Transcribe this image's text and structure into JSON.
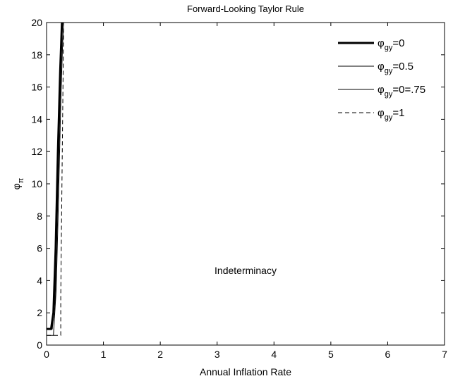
{
  "chart_data": {
    "type": "line",
    "title": "Forward-Looking Taylor Rule",
    "xlabel": "Annual Inflation Rate",
    "ylabel": "φπ",
    "ylabel_parts": {
      "base": "φ",
      "sub": "π"
    },
    "xlim": [
      0,
      7
    ],
    "ylim": [
      0,
      20
    ],
    "xticks": [
      0,
      1,
      2,
      3,
      4,
      5,
      6,
      7
    ],
    "yticks": [
      0,
      2,
      4,
      6,
      8,
      10,
      12,
      14,
      16,
      18,
      20
    ],
    "grid": false,
    "legend_position": "top-right",
    "annotations": [
      {
        "text": "Indeterminacy",
        "x": 3.5,
        "y": 4.4
      }
    ],
    "series": [
      {
        "name": "φgy=0",
        "label_parts": {
          "base": "φ",
          "sub": "gy",
          "suffix": "=0"
        },
        "style": "solid-thick",
        "x": [
          0.0,
          0.08,
          0.12,
          0.16,
          0.2,
          0.24,
          0.27
        ],
        "y": [
          1.0,
          1.0,
          2.0,
          6.0,
          12.0,
          17.0,
          20.0
        ]
      },
      {
        "name": "φgy=0.5",
        "label_parts": {
          "base": "φ",
          "sub": "gy",
          "suffix": "=0.5"
        },
        "style": "solid-thin",
        "x": [
          0.0,
          0.1,
          0.15,
          0.19,
          0.23,
          0.26,
          0.28
        ],
        "y": [
          1.0,
          1.0,
          2.8,
          8.0,
          14.0,
          18.0,
          20.0
        ]
      },
      {
        "name": "φgy=0=.75",
        "label_parts": {
          "base": "φ",
          "sub": "gy",
          "suffix": "=0=.75"
        },
        "style": "solid-thin",
        "x": [
          0.0,
          0.12,
          0.17,
          0.21,
          0.25,
          0.28,
          0.3
        ],
        "y": [
          0.6,
          0.6,
          3.5,
          9.0,
          15.0,
          18.5,
          20.0
        ]
      },
      {
        "name": "φgy=1",
        "label_parts": {
          "base": "φ",
          "sub": "gy",
          "suffix": "=1"
        },
        "style": "dashed",
        "x": [
          0.0,
          0.25,
          0.25,
          0.3
        ],
        "y": [
          0.6,
          0.6,
          3.0,
          20.0
        ]
      }
    ]
  }
}
